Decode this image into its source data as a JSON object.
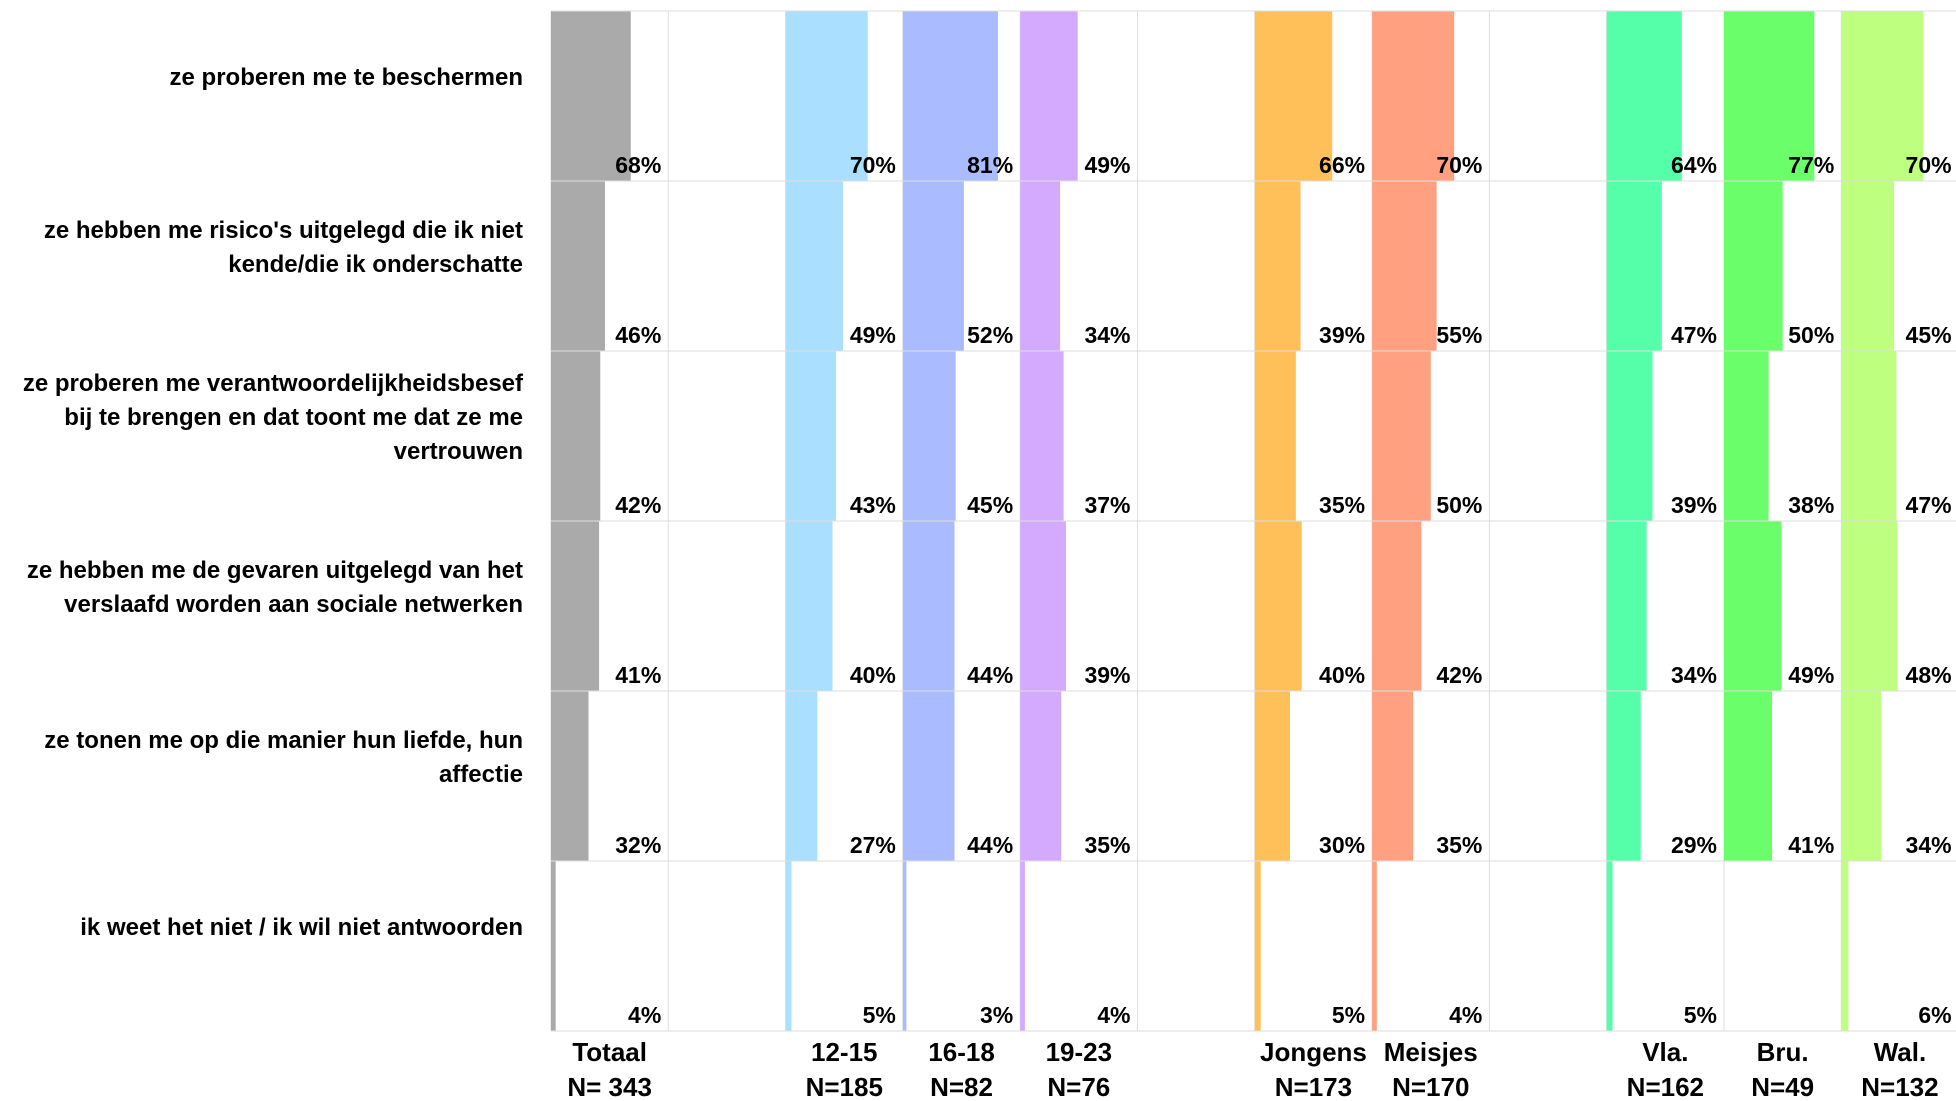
{
  "chart_data": {
    "type": "bar",
    "categories": [
      "ze proberen me te beschermen",
      "ze hebben me risico's uitgelegd die ik niet kende/die ik onderschatte",
      "ze proberen me verantwoordelijkheidsbesef bij te brengen en dat toont me dat ze me vertrouwen",
      "ze hebben me de gevaren uitgelegd van het verslaafd worden aan sociale netwerken",
      "ze tonen me op die manier hun liefde, hun affectie",
      "ik weet het niet / ik wil niet antwoorden"
    ],
    "xlim": [
      0,
      100
    ],
    "series": [
      {
        "name": "Totaal",
        "n": "N= 343",
        "color": "#aaaaaa",
        "values": [
          68,
          46,
          42,
          41,
          32,
          4
        ],
        "value_labels": [
          "68%",
          "46%",
          "42%",
          "41%",
          "32%",
          "4%"
        ]
      },
      {
        "name": "12-15",
        "n": "N=185",
        "color": "#aadfff",
        "values": [
          70,
          49,
          43,
          40,
          27,
          5
        ],
        "value_labels": [
          "70%",
          "49%",
          "43%",
          "40%",
          "27%",
          "5%"
        ]
      },
      {
        "name": "16-18",
        "n": "N=82",
        "color": "#aabbff",
        "values": [
          81,
          52,
          45,
          44,
          44,
          3
        ],
        "value_labels": [
          "81%",
          "52%",
          "45%",
          "44%",
          "44%",
          "3%"
        ]
      },
      {
        "name": "19-23",
        "n": "N=76",
        "color": "#d4aaff",
        "values": [
          49,
          34,
          37,
          39,
          35,
          4
        ],
        "value_labels": [
          "49%",
          "34%",
          "37%",
          "39%",
          "35%",
          "4%"
        ]
      },
      {
        "name": "Jongens",
        "n": "N=173",
        "color": "#ffc05a",
        "values": [
          66,
          39,
          35,
          40,
          30,
          5
        ],
        "value_labels": [
          "66%",
          "39%",
          "35%",
          "40%",
          "30%",
          "5%"
        ]
      },
      {
        "name": "Meisjes",
        "n": "N=170",
        "color": "#ffa080",
        "values": [
          70,
          55,
          50,
          42,
          35,
          4
        ],
        "value_labels": [
          "70%",
          "55%",
          "50%",
          "42%",
          "35%",
          "4%"
        ]
      },
      {
        "name": "Vla.",
        "n": "N=162",
        "color": "#55ffaa",
        "values": [
          64,
          47,
          39,
          34,
          29,
          5
        ],
        "value_labels": [
          "64%",
          "47%",
          "39%",
          "34%",
          "29%",
          "5%"
        ]
      },
      {
        "name": "Bru.",
        "n": "N=49",
        "color": "#6aff6a",
        "values": [
          77,
          50,
          38,
          49,
          41,
          null
        ],
        "value_labels": [
          "77%",
          "50%",
          "38%",
          "49%",
          "41%",
          null
        ]
      },
      {
        "name": "Wal.",
        "n": "N=132",
        "color": "#bfff7f",
        "values": [
          70,
          45,
          47,
          48,
          34,
          6
        ],
        "value_labels": [
          "70%",
          "45%",
          "47%",
          "48%",
          "34%",
          "6%"
        ]
      }
    ]
  }
}
